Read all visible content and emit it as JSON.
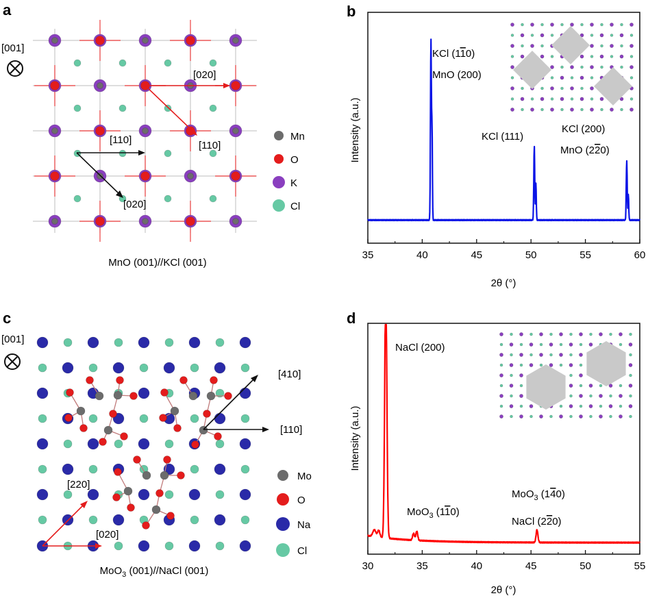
{
  "colors": {
    "mn": "#6c6c6c",
    "o": "#e41c1c",
    "k": "#8a3fbf",
    "cl": "#66c9a4",
    "na": "#2a2aa8",
    "mo": "#6c6c6c",
    "xrd_b": "#0a14e6",
    "xrd_d": "#ff0000",
    "hexgrey": "#c9c9c9"
  },
  "panel_a": {
    "label": "a",
    "axis_label": "[001]",
    "arrows": [
      "[020]",
      "[110]",
      "[110]",
      "[020]"
    ],
    "legend": [
      "Mn",
      "O",
      "K",
      "Cl"
    ],
    "caption": "MnO (001)//KCl (001)"
  },
  "panel_c": {
    "label": "c",
    "axis_label": "[001]",
    "arrows": [
      "[410]",
      "[110]",
      "[220]",
      "[020]"
    ],
    "legend": [
      "Mo",
      "O",
      "Na",
      "Cl"
    ],
    "caption_pre": "MoO",
    "caption_sub": "3",
    "caption_post": " (001)//NaCl (001)"
  },
  "chart_data": [
    {
      "panel": "b",
      "type": "line",
      "xlabel": "2θ (°)",
      "ylabel": "Intensity (a.u.)",
      "xlim": [
        35,
        60
      ],
      "xticks": [
        35,
        40,
        45,
        50,
        55,
        60
      ],
      "ylim": [
        0,
        100
      ],
      "baseline": 10,
      "peaks": [
        {
          "x": 40.8,
          "height": 78,
          "width": 0.06
        },
        {
          "x": 40.9,
          "height": 38,
          "width": 0.05
        },
        {
          "x": 50.3,
          "height": 32,
          "width": 0.06
        },
        {
          "x": 50.45,
          "height": 16,
          "width": 0.05
        },
        {
          "x": 58.8,
          "height": 26,
          "width": 0.06
        },
        {
          "x": 58.95,
          "height": 11,
          "width": 0.05
        }
      ],
      "annotations": [
        {
          "pre": "KCl (1",
          "bar": "1",
          "post": "0)"
        },
        {
          "pre": "MnO (200)",
          "bar": "",
          "post": ""
        },
        {
          "pre": "KCl (111)",
          "bar": "",
          "post": ""
        },
        {
          "pre": "KCl (200)",
          "bar": "",
          "post": ""
        },
        {
          "pre": "MnO (2",
          "bar": "2",
          "post": "0)"
        }
      ]
    },
    {
      "panel": "d",
      "type": "line",
      "xlabel": "2θ (°)",
      "ylabel": "Intensity (a.u.)",
      "xlim": [
        30,
        55
      ],
      "xticks": [
        30,
        35,
        40,
        45,
        50,
        55
      ],
      "ylim": [
        0,
        100
      ],
      "baseline": 5,
      "peaks": [
        {
          "x": 30.6,
          "height": 3,
          "width": 0.2
        },
        {
          "x": 31.0,
          "height": 3,
          "width": 0.15
        },
        {
          "x": 31.65,
          "height": 110,
          "width": 0.14
        },
        {
          "x": 34.2,
          "height": 3,
          "width": 0.12
        },
        {
          "x": 34.5,
          "height": 4,
          "width": 0.12
        },
        {
          "x": 45.55,
          "height": 5.5,
          "width": 0.12
        }
      ],
      "annotations": [
        {
          "pre": "NaCl (200)",
          "bar": "",
          "post": "",
          "sub": ""
        },
        {
          "pre": "MoO",
          "sub": "3",
          "mid": " (1",
          "bar": "1",
          "post": "0)"
        },
        {
          "pre": "MoO",
          "sub": "3",
          "mid": " (1",
          "bar": "4",
          "post": "0)"
        },
        {
          "pre": "NaCl (2",
          "sub": "",
          "mid": "",
          "bar": "2",
          "post": "0)"
        }
      ]
    }
  ]
}
